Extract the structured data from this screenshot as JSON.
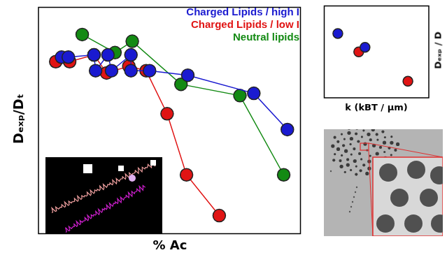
{
  "chart_data": [
    {
      "type": "line",
      "x_label": "% Ac",
      "y_label": "Dₑₓₚ/Dₜ",
      "xlim": [
        0,
        100
      ],
      "ylim": [
        0,
        1
      ],
      "tick_labels": false,
      "grid": false,
      "legend": "upper right",
      "marker": "circle",
      "series": [
        {
          "name": "Charged Lipids / high I",
          "color": "#1a1ad0",
          "x": [
            8.8,
            11.4,
            21.2,
            21.8,
            26.5,
            27.9,
            35.3,
            35.3,
            42.4,
            57.0,
            82.2,
            95.0
          ],
          "values": [
            0.78,
            0.78,
            0.79,
            0.72,
            0.79,
            0.72,
            0.79,
            0.72,
            0.72,
            0.7,
            0.62,
            0.46
          ]
        },
        {
          "name": "Charged Lipids / low I",
          "color": "#e01414",
          "x": [
            6.6,
            11.9,
            21.2,
            26.0,
            34.5,
            41.1,
            49.1,
            56.5,
            69.0
          ],
          "values": [
            0.76,
            0.76,
            0.79,
            0.71,
            0.74,
            0.72,
            0.53,
            0.26,
            0.08
          ]
        },
        {
          "name": "Neutral lipids",
          "color": "#138a13",
          "x": [
            16.7,
            29.2,
            35.8,
            54.4,
            76.9,
            93.6
          ],
          "values": [
            0.88,
            0.8,
            0.85,
            0.66,
            0.61,
            0.26
          ]
        }
      ]
    },
    {
      "type": "scatter",
      "x_label": "k (kBT / µm)",
      "y_label": "Dₑₓₚ / D",
      "xlim": [
        0,
        1
      ],
      "ylim": [
        0,
        1
      ],
      "tick_labels": false,
      "grid": false,
      "marker": "circle",
      "series": [
        {
          "x": [
            0.13,
            0.33,
            0.39,
            0.8
          ],
          "values": [
            0.7,
            0.5,
            0.55,
            0.18
          ],
          "colors": [
            "#1a1ad0",
            "#e01414",
            "#1a1ad0",
            "#e01414"
          ]
        }
      ]
    }
  ]
}
